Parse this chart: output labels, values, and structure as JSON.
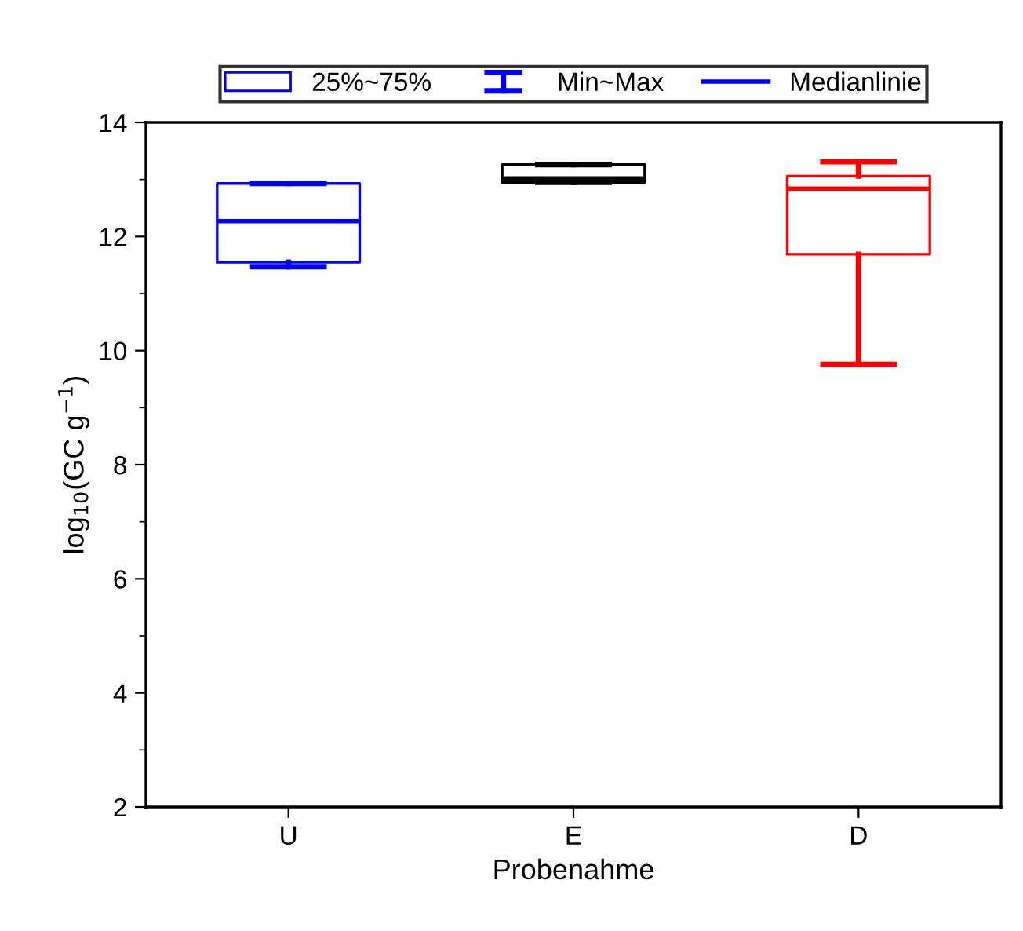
{
  "chart_data": {
    "type": "box",
    "xlabel": "Probenahme",
    "ylabel": "log$_{10}$(GC g$^{−1}$)",
    "categories": [
      "U",
      "E",
      "D"
    ],
    "colors": [
      "#0000ff",
      "#000000",
      "#ff0000"
    ],
    "boxes": [
      {
        "low": 11.47,
        "q1": 11.55,
        "median": 12.27,
        "q3": 12.93,
        "high": 12.93
      },
      {
        "low": 12.95,
        "q1": 12.95,
        "median": 13.02,
        "q3": 13.26,
        "high": 13.26
      },
      {
        "low": 9.76,
        "q1": 11.69,
        "median": 12.84,
        "q3": 13.06,
        "high": 13.31
      }
    ],
    "ylim": [
      2,
      14
    ],
    "yticks": [
      2,
      4,
      6,
      8,
      10,
      12,
      14
    ],
    "grid": false,
    "annotations": [
      "25%~75%",
      "Min~Max",
      "Medianlinie"
    ]
  }
}
